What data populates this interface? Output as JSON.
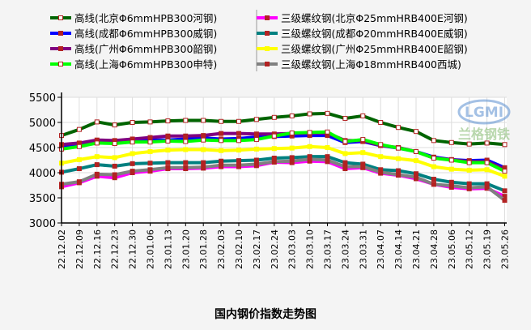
{
  "chart_data": {
    "type": "line",
    "title": "国内钢价指数走势图",
    "xlabel": "",
    "ylabel": "",
    "ylim": [
      3000,
      5500
    ],
    "yticks": [
      3000,
      3500,
      4000,
      4500,
      5000,
      5500
    ],
    "grid": true,
    "legend_position": "top",
    "x": [
      "22.12.02",
      "22.12.09",
      "22.12.16",
      "22.12.23",
      "22.12.30",
      "23.01.06",
      "23.01.13",
      "23.01.20",
      "23.01.28",
      "23.02.03",
      "23.02.10",
      "23.02.17",
      "23.02.24",
      "23.03.03",
      "23.03.10",
      "23.03.17",
      "23.03.24",
      "23.03.31",
      "23.04.07",
      "23.04.14",
      "23.04.21",
      "23.04.28",
      "23.05.06",
      "23.05.12",
      "23.05.19",
      "23.05.26"
    ],
    "series": [
      {
        "name": "高线(北京Φ6mmHPB300河钢)",
        "color": "#006400",
        "marker": "#ffffff",
        "marker_edge": "#b22222",
        "values": [
          4740,
          4860,
          5010,
          4950,
          5000,
          5010,
          5030,
          5040,
          5040,
          5020,
          5020,
          5060,
          5100,
          5130,
          5170,
          5180,
          5080,
          5130,
          5000,
          4900,
          4820,
          4640,
          4600,
          4570,
          4590,
          4560
        ]
      },
      {
        "name": "高线(成都Φ6mmHPB300威钢)",
        "color": "#0000ff",
        "marker": "#b22222",
        "marker_edge": "#b22222",
        "values": [
          4530,
          4570,
          4620,
          4580,
          4640,
          4650,
          4650,
          4670,
          4690,
          4670,
          4680,
          4710,
          4720,
          4730,
          4740,
          4740,
          4600,
          4620,
          4540,
          4490,
          4420,
          4310,
          4260,
          4240,
          4250,
          4100
        ]
      },
      {
        "name": "高线(广州Φ6mmHPB300韶钢)",
        "color": "#800080",
        "marker": "#b22222",
        "marker_edge": "#b22222",
        "values": [
          4560,
          4590,
          4650,
          4640,
          4670,
          4700,
          4730,
          4730,
          4740,
          4780,
          4780,
          4770,
          4770,
          4780,
          4790,
          4790,
          4640,
          4640,
          4540,
          4500,
          4420,
          4290,
          4260,
          4220,
          4220,
          4070
        ]
      },
      {
        "name": "高线(上海Φ6mmHPB300申特)",
        "color": "#00ff00",
        "marker": "#ffffff",
        "marker_edge": "#b22222",
        "values": [
          4470,
          4520,
          4590,
          4580,
          4610,
          4610,
          4630,
          4620,
          4650,
          4640,
          4640,
          4660,
          4730,
          4790,
          4800,
          4810,
          4620,
          4660,
          4560,
          4490,
          4420,
          4290,
          4250,
          4200,
          4200,
          4030
        ]
      },
      {
        "name": "三级螺纹钢(北京Φ25mmHRB400E河钢)",
        "color": "#ff00ff",
        "marker": "#b22222",
        "marker_edge": "#b22222",
        "values": [
          3720,
          3800,
          3930,
          3900,
          4000,
          4030,
          4080,
          4080,
          4090,
          4120,
          4120,
          4140,
          4210,
          4200,
          4230,
          4220,
          4080,
          4100,
          3990,
          3950,
          3880,
          3770,
          3710,
          3680,
          3690,
          3530
        ]
      },
      {
        "name": "三级螺纹钢(成都Φ20mmHRB400E威钢)",
        "color": "#008080",
        "marker": "#b22222",
        "marker_edge": "#b22222",
        "values": [
          4010,
          4080,
          4160,
          4130,
          4180,
          4190,
          4200,
          4200,
          4200,
          4230,
          4240,
          4250,
          4290,
          4300,
          4320,
          4320,
          4200,
          4170,
          4060,
          4040,
          3980,
          3870,
          3810,
          3780,
          3780,
          3640
        ]
      },
      {
        "name": "三级螺纹钢(广州Φ25mmHRB400E韶钢)",
        "color": "#ffff00",
        "marker": "#ffff00",
        "marker_edge": "#ffff00",
        "values": [
          4190,
          4260,
          4320,
          4300,
          4380,
          4420,
          4450,
          4460,
          4460,
          4440,
          4450,
          4470,
          4480,
          4490,
          4520,
          4500,
          4380,
          4400,
          4320,
          4280,
          4240,
          4120,
          4070,
          4050,
          4060,
          3930
        ]
      },
      {
        "name": "三级螺纹钢(上海Φ18mmHRB400西城)",
        "color": "#808080",
        "marker": "#b22222",
        "marker_edge": "#b22222",
        "values": [
          3770,
          3820,
          3970,
          3960,
          4030,
          4060,
          4100,
          4100,
          4110,
          4150,
          4150,
          4170,
          4220,
          4230,
          4270,
          4250,
          4120,
          4120,
          4010,
          3960,
          3910,
          3770,
          3740,
          3700,
          3720,
          3450
        ]
      }
    ]
  },
  "watermark": {
    "text": "LGMI",
    "subtext": "兰格钢铁"
  }
}
